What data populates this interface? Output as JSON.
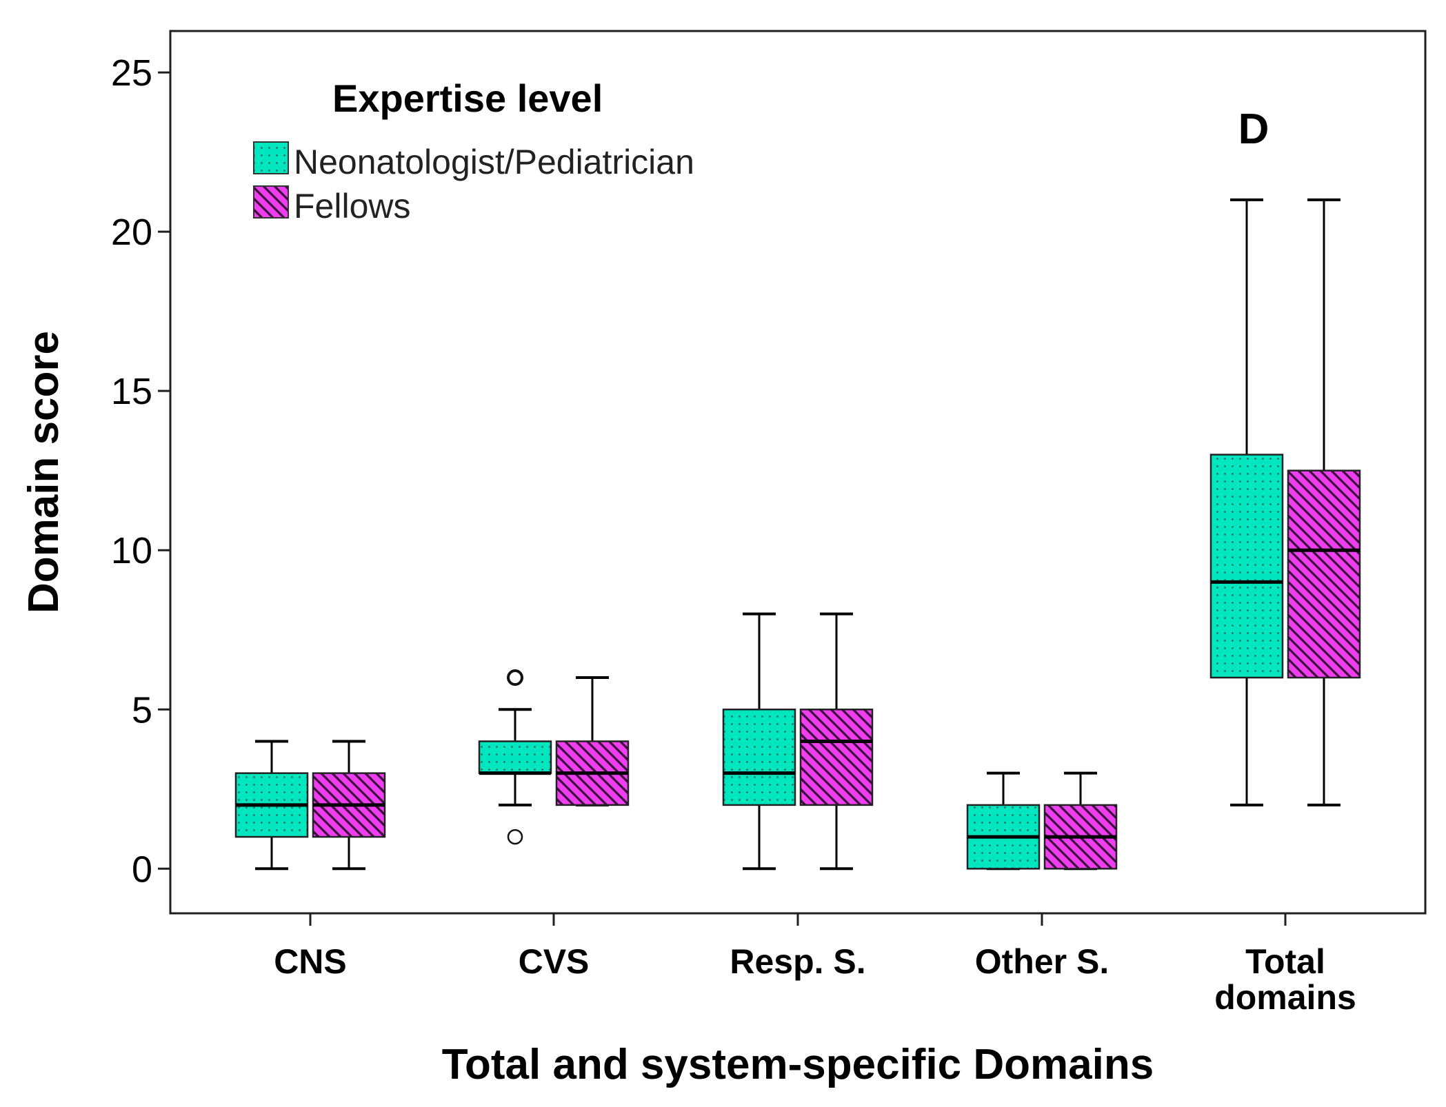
{
  "chart_data": {
    "type": "boxplot",
    "panel_label": "D",
    "xlabel": "Total and system-specific Domains",
    "ylabel": "Domain score",
    "ylim": [
      -1.4,
      26.3
    ],
    "yticks": [
      0,
      5,
      10,
      15,
      20,
      25
    ],
    "categories": [
      {
        "lines": [
          "CNS"
        ]
      },
      {
        "lines": [
          "CVS"
        ]
      },
      {
        "lines": [
          "Resp. S."
        ]
      },
      {
        "lines": [
          "Other S."
        ]
      },
      {
        "lines": [
          "Total",
          "domains"
        ]
      }
    ],
    "legend": {
      "title": "Expertise level",
      "position": "top-left"
    },
    "series": [
      {
        "name": "Neonatologist/Pediatrician",
        "color": "#00e6bf",
        "pattern": "dots",
        "boxes": [
          {
            "min": 0,
            "q1": 1,
            "median": 2,
            "q3": 3,
            "max": 4,
            "outliers": []
          },
          {
            "min": 2,
            "q1": 3,
            "median": 3,
            "q3": 4,
            "max": 5,
            "outliers": [
              6,
              1
            ]
          },
          {
            "min": 0,
            "q1": 2,
            "median": 3,
            "q3": 5,
            "max": 8,
            "outliers": []
          },
          {
            "min": 0,
            "q1": 0,
            "median": 1,
            "q3": 2,
            "max": 3,
            "outliers": []
          },
          {
            "min": 2,
            "q1": 6,
            "median": 9,
            "q3": 13,
            "max": 21,
            "outliers": []
          }
        ]
      },
      {
        "name": "Fellows",
        "color": "#ee3ef0",
        "pattern": "diagonal-stripes",
        "boxes": [
          {
            "min": 0,
            "q1": 1,
            "median": 2,
            "q3": 3,
            "max": 4,
            "outliers": []
          },
          {
            "min": 2,
            "q1": 2,
            "median": 3,
            "q3": 4,
            "max": 6,
            "outliers": []
          },
          {
            "min": 0,
            "q1": 2,
            "median": 4,
            "q3": 5,
            "max": 8,
            "outliers": []
          },
          {
            "min": 0,
            "q1": 0,
            "median": 1,
            "q3": 2,
            "max": 3,
            "outliers": []
          },
          {
            "min": 2,
            "q1": 6,
            "median": 10,
            "q3": 12.5,
            "max": 21,
            "outliers": []
          }
        ]
      }
    ]
  }
}
